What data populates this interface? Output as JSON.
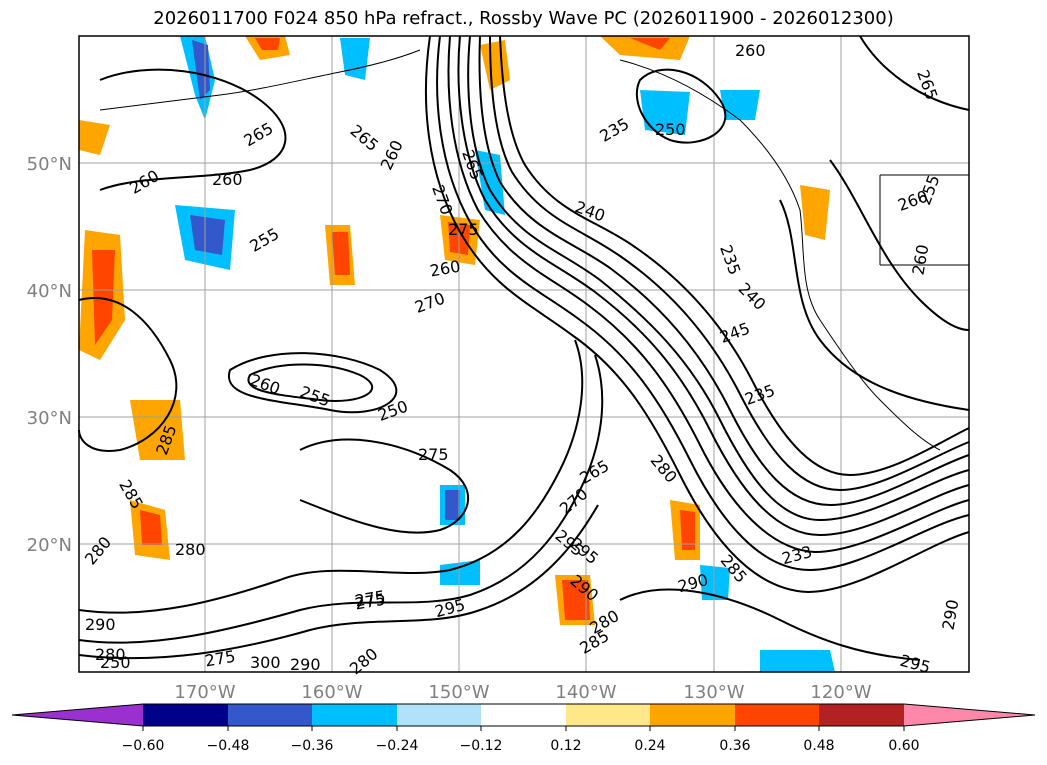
{
  "title": "2026011700 F024 850 hPa refract., Rossby Wave PC (2026011900 - 2026012300)",
  "latitude_labels": [
    "50°N",
    "40°N",
    "30°N",
    "20°N"
  ],
  "longitude_labels": [
    "170°W",
    "160°W",
    "150°W",
    "140°W",
    "130°W",
    "120°W"
  ],
  "colorbar": {
    "ticks": [
      "−0.60",
      "−0.48",
      "−0.36",
      "−0.24",
      "−0.12",
      "0.12",
      "0.24",
      "0.36",
      "0.48",
      "0.60"
    ],
    "colors": [
      "#9b30d0",
      "#00008b",
      "#3358cc",
      "#00bfff",
      "#b0e2fa",
      "#ffffff",
      "#ffe88a",
      "#ffa500",
      "#ff4500",
      "#b22222",
      "#ff88aa"
    ]
  },
  "contour_labels": [
    "260",
    "265",
    "265",
    "255",
    "260",
    "255",
    "260",
    "270",
    "275",
    "260",
    "270",
    "265",
    "235",
    "250",
    "240",
    "260",
    "235",
    "240",
    "245",
    "235",
    "265",
    "260",
    "260",
    "255",
    "250",
    "275",
    "285",
    "285",
    "280",
    "280",
    "275",
    "265",
    "270",
    "280",
    "260",
    "295",
    "290",
    "285",
    "290",
    "233",
    "290",
    "295",
    "285",
    "280",
    "275",
    "295",
    "280",
    "290",
    "290",
    "250",
    "300",
    "280",
    "275",
    "295"
  ]
}
